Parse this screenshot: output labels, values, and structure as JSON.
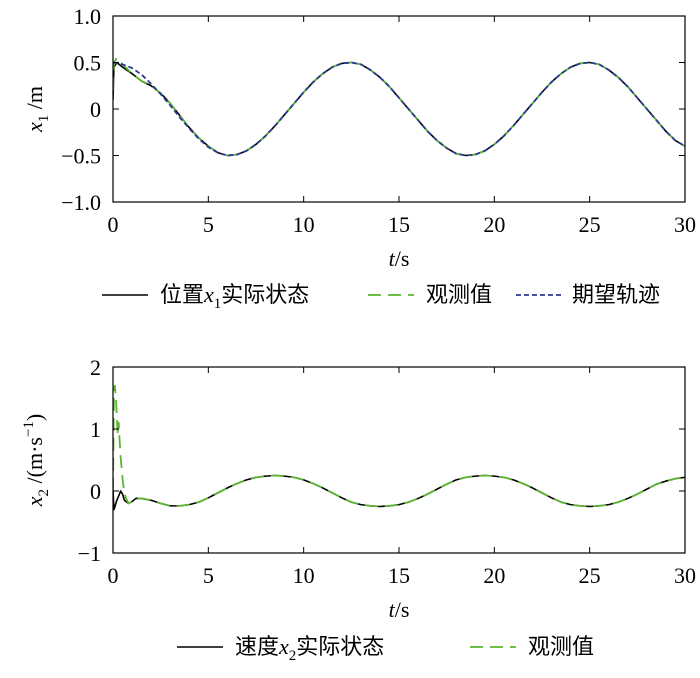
{
  "chart_data": [
    {
      "type": "line",
      "xlabel": {
        "var": "t",
        "unit": "/s"
      },
      "ylabel": {
        "var": "x",
        "sub": "1",
        "unit": " /m"
      },
      "xlim": [
        0,
        30
      ],
      "ylim": [
        -1.0,
        1.0
      ],
      "xticks": [
        "0",
        "5",
        "10",
        "15",
        "20",
        "25",
        "30"
      ],
      "yticks": [
        "1.0",
        "0.5",
        "0",
        "−0.5",
        "−1.0"
      ],
      "grid": false,
      "legend_position": "bottom",
      "series": [
        {
          "name": "位置x1实际状态",
          "legend": {
            "pre": "位置",
            "var": "x",
            "sub": "1",
            "post": "实际状态"
          },
          "color": "#000000",
          "style": "solid",
          "x": [
            0,
            0.05,
            0.2,
            0.5,
            1,
            1.5,
            2,
            2.5,
            3,
            3.5,
            4,
            4.5,
            5,
            5.5,
            6,
            6.5,
            7,
            7.5,
            8,
            8.5,
            9,
            9.5,
            10,
            10.5,
            11,
            11.5,
            12,
            12.5,
            13,
            13.5,
            14,
            14.5,
            15,
            15.5,
            16,
            16.5,
            17,
            17.5,
            18,
            18.5,
            19,
            19.5,
            20,
            20.5,
            21,
            21.5,
            22,
            22.5,
            23,
            23.5,
            24,
            24.5,
            25,
            25.5,
            26,
            26.5,
            27,
            27.5,
            28,
            28.5,
            29,
            29.5,
            30
          ],
          "y": [
            0.1,
            0.45,
            0.5,
            0.45,
            0.38,
            0.3,
            0.25,
            0.17,
            0.06,
            -0.07,
            -0.2,
            -0.31,
            -0.4,
            -0.47,
            -0.5,
            -0.49,
            -0.45,
            -0.38,
            -0.29,
            -0.18,
            -0.06,
            0.06,
            0.18,
            0.29,
            0.38,
            0.45,
            0.49,
            0.5,
            0.48,
            0.42,
            0.34,
            0.24,
            0.12,
            0,
            -0.12,
            -0.24,
            -0.34,
            -0.42,
            -0.48,
            -0.5,
            -0.49,
            -0.45,
            -0.38,
            -0.29,
            -0.18,
            -0.06,
            0.06,
            0.18,
            0.29,
            0.38,
            0.45,
            0.49,
            0.5,
            0.48,
            0.42,
            0.34,
            0.24,
            0.12,
            0,
            -0.12,
            -0.24,
            -0.34,
            -0.4
          ]
        },
        {
          "name": "观测值",
          "legend": {
            "pre": "观测值"
          },
          "color": "#5cb531",
          "style": "dashed",
          "x": [
            0,
            0.05,
            0.2,
            0.5,
            1,
            1.5,
            2,
            2.5,
            3,
            3.5,
            4,
            4.5,
            5,
            5.5,
            6,
            6.5,
            7,
            7.5,
            8,
            8.5,
            9,
            9.5,
            10,
            10.5,
            11,
            11.5,
            12,
            12.5,
            13,
            13.5,
            14,
            14.5,
            15,
            15.5,
            16,
            16.5,
            17,
            17.5,
            18,
            18.5,
            19,
            19.5,
            20,
            20.5,
            21,
            21.5,
            22,
            22.5,
            23,
            23.5,
            24,
            24.5,
            25,
            25.5,
            26,
            26.5,
            27,
            27.5,
            28,
            28.5,
            29,
            29.5,
            30
          ],
          "y": [
            0.2,
            0.5,
            0.55,
            0.48,
            0.38,
            0.3,
            0.25,
            0.17,
            0.06,
            -0.07,
            -0.2,
            -0.31,
            -0.4,
            -0.47,
            -0.5,
            -0.49,
            -0.45,
            -0.38,
            -0.29,
            -0.18,
            -0.06,
            0.06,
            0.18,
            0.29,
            0.38,
            0.45,
            0.49,
            0.5,
            0.48,
            0.42,
            0.34,
            0.24,
            0.12,
            0,
            -0.12,
            -0.24,
            -0.34,
            -0.42,
            -0.48,
            -0.5,
            -0.49,
            -0.45,
            -0.38,
            -0.29,
            -0.18,
            -0.06,
            0.06,
            0.18,
            0.29,
            0.38,
            0.45,
            0.49,
            0.5,
            0.48,
            0.42,
            0.34,
            0.24,
            0.12,
            0,
            -0.12,
            -0.24,
            -0.34,
            -0.4
          ]
        },
        {
          "name": "期望轨迹",
          "legend": {
            "pre": "期望轨迹"
          },
          "color": "#2b3990",
          "style": "dotted",
          "x": [
            0,
            0.5,
            1,
            1.5,
            2,
            2.5,
            3,
            3.5,
            4,
            4.5,
            5,
            5.5,
            6,
            6.5,
            7,
            7.5,
            8,
            8.5,
            9,
            9.5,
            10,
            10.5,
            11,
            11.5,
            12,
            12.5,
            13,
            13.5,
            14,
            14.5,
            15,
            15.5,
            16,
            16.5,
            17,
            17.5,
            18,
            18.5,
            19,
            19.5,
            20,
            20.5,
            21,
            21.5,
            22,
            22.5,
            23,
            23.5,
            24,
            24.5,
            25,
            25.5,
            26,
            26.5,
            27,
            27.5,
            28,
            28.5,
            29,
            29.5,
            30
          ],
          "y": [
            0.5,
            0.48,
            0.44,
            0.37,
            0.27,
            0.16,
            0.04,
            -0.09,
            -0.21,
            -0.32,
            -0.41,
            -0.47,
            -0.5,
            -0.49,
            -0.45,
            -0.38,
            -0.29,
            -0.18,
            -0.06,
            0.06,
            0.18,
            0.29,
            0.38,
            0.45,
            0.49,
            0.5,
            0.48,
            0.42,
            0.34,
            0.24,
            0.12,
            0,
            -0.12,
            -0.24,
            -0.34,
            -0.42,
            -0.48,
            -0.5,
            -0.49,
            -0.45,
            -0.38,
            -0.29,
            -0.18,
            -0.06,
            0.06,
            0.18,
            0.29,
            0.38,
            0.45,
            0.49,
            0.5,
            0.48,
            0.42,
            0.34,
            0.24,
            0.12,
            0,
            -0.12,
            -0.24,
            -0.34,
            -0.4
          ]
        }
      ]
    },
    {
      "type": "line",
      "xlabel": {
        "var": "t",
        "unit": "/s"
      },
      "ylabel": {
        "var": "x",
        "sub": "2",
        "unit": " /(m·s",
        "sup": "−1",
        "close": ")"
      },
      "xlim": [
        0,
        30
      ],
      "ylim": [
        -1,
        2
      ],
      "xticks": [
        "0",
        "5",
        "10",
        "15",
        "20",
        "25",
        "30"
      ],
      "yticks": [
        "2",
        "1",
        "0",
        "−1"
      ],
      "grid": false,
      "legend_position": "bottom",
      "series": [
        {
          "name": "速度x2实际状态",
          "legend": {
            "pre": "速度",
            "var": "x",
            "sub": "2",
            "post": "实际状态"
          },
          "color": "#000000",
          "style": "solid",
          "x": [
            0,
            0.05,
            0.1,
            0.2,
            0.3,
            0.4,
            0.5,
            0.6,
            0.8,
            1,
            1.2,
            1.5,
            2,
            2.5,
            3,
            3.5,
            4,
            4.5,
            5,
            5.5,
            6,
            6.5,
            7,
            7.5,
            8,
            8.5,
            9,
            9.5,
            10,
            10.5,
            11,
            11.5,
            12,
            12.5,
            13,
            13.5,
            14,
            14.5,
            15,
            15.5,
            16,
            16.5,
            17,
            17.5,
            18,
            18.5,
            19,
            19.5,
            20,
            20.5,
            21,
            21.5,
            22,
            22.5,
            23,
            23.5,
            24,
            24.5,
            25,
            25.5,
            26,
            26.5,
            27,
            27.5,
            28,
            28.5,
            29,
            29.5,
            30
          ],
          "y": [
            0,
            -0.3,
            -0.25,
            -0.15,
            -0.08,
            0,
            -0.05,
            -0.15,
            -0.2,
            -0.17,
            -0.12,
            -0.12,
            -0.15,
            -0.2,
            -0.24,
            -0.24,
            -0.22,
            -0.18,
            -0.11,
            -0.03,
            0.05,
            0.12,
            0.18,
            0.22,
            0.24,
            0.25,
            0.24,
            0.22,
            0.18,
            0.12,
            0.05,
            -0.03,
            -0.11,
            -0.18,
            -0.22,
            -0.24,
            -0.25,
            -0.24,
            -0.22,
            -0.18,
            -0.12,
            -0.05,
            0.03,
            0.11,
            0.18,
            0.22,
            0.24,
            0.25,
            0.24,
            0.22,
            0.18,
            0.12,
            0.05,
            -0.03,
            -0.11,
            -0.18,
            -0.22,
            -0.24,
            -0.25,
            -0.24,
            -0.22,
            -0.18,
            -0.12,
            -0.05,
            0.03,
            0.11,
            0.16,
            0.2,
            0.22
          ]
        },
        {
          "name": "观测值",
          "legend": {
            "pre": "观测值"
          },
          "color": "#5cb531",
          "style": "dashed",
          "x": [
            0,
            0.05,
            0.1,
            0.15,
            0.2,
            0.25,
            0.3,
            0.35,
            0.4,
            0.5,
            0.6,
            0.8,
            1,
            1.2,
            1.5,
            2,
            2.5,
            3,
            3.5,
            4,
            4.5,
            5,
            5.5,
            6,
            6.5,
            7,
            7.5,
            8,
            8.5,
            9,
            9.5,
            10,
            10.5,
            11,
            11.5,
            12,
            12.5,
            13,
            13.5,
            14,
            14.5,
            15,
            15.5,
            16,
            16.5,
            17,
            17.5,
            18,
            18.5,
            19,
            19.5,
            20,
            20.5,
            21,
            21.5,
            22,
            22.5,
            23,
            23.5,
            24,
            24.5,
            25,
            25.5,
            26,
            26.5,
            27,
            27.5,
            28,
            28.5,
            29,
            29.5,
            30
          ],
          "y": [
            0,
            1.6,
            1.7,
            1.5,
            1.2,
            0.9,
            1.1,
            0.8,
            0.55,
            0.2,
            -0.05,
            -0.2,
            -0.17,
            -0.12,
            -0.12,
            -0.15,
            -0.2,
            -0.24,
            -0.24,
            -0.22,
            -0.18,
            -0.11,
            -0.03,
            0.05,
            0.12,
            0.18,
            0.22,
            0.24,
            0.25,
            0.24,
            0.22,
            0.18,
            0.12,
            0.05,
            -0.03,
            -0.11,
            -0.18,
            -0.22,
            -0.24,
            -0.25,
            -0.24,
            -0.22,
            -0.18,
            -0.12,
            -0.05,
            0.03,
            0.11,
            0.18,
            0.22,
            0.24,
            0.25,
            0.24,
            0.22,
            0.18,
            0.12,
            0.05,
            -0.03,
            -0.11,
            -0.18,
            -0.22,
            -0.24,
            -0.25,
            -0.24,
            -0.22,
            -0.18,
            -0.12,
            -0.05,
            0.03,
            0.11,
            0.16,
            0.2,
            0.22
          ]
        }
      ]
    }
  ]
}
